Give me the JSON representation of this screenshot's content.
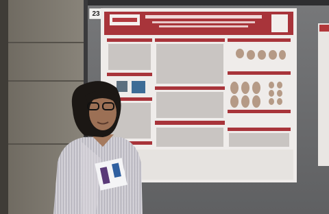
{
  "board_number": "23"
}
